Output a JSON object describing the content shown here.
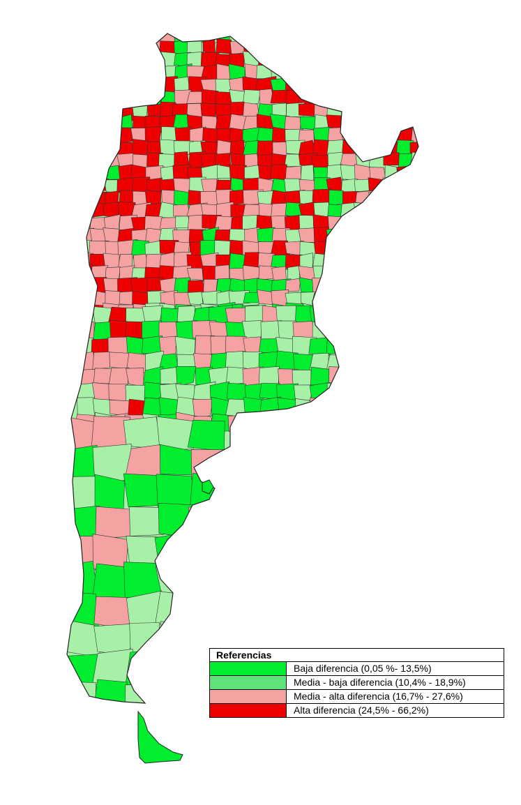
{
  "map": {
    "categories": [
      {
        "key": "baja",
        "color": "#00ee2e"
      },
      {
        "key": "media_baja",
        "color": "#34d65a"
      },
      {
        "key": "media_alta",
        "color": "#f4a2a2"
      },
      {
        "key": "alta",
        "color": "#ee0000"
      }
    ],
    "light_green": "#a8f0a8",
    "land_base": "#a8f0a8"
  },
  "legend": {
    "title": "Referencias",
    "items": [
      {
        "label": "Baja diferencia (0,05 %- 13,5%)",
        "color": "#00ee2e"
      },
      {
        "label": "Media - baja diferencia (10,4% - 18,9%)",
        "color": "#5ee27a"
      },
      {
        "label": "Media - alta diferencia (16,7% - 27,6%)",
        "color": "#f4a2a2"
      },
      {
        "label": "Alta diferencia (24,5% - 66,2%)",
        "color": "#ee0000"
      }
    ]
  }
}
